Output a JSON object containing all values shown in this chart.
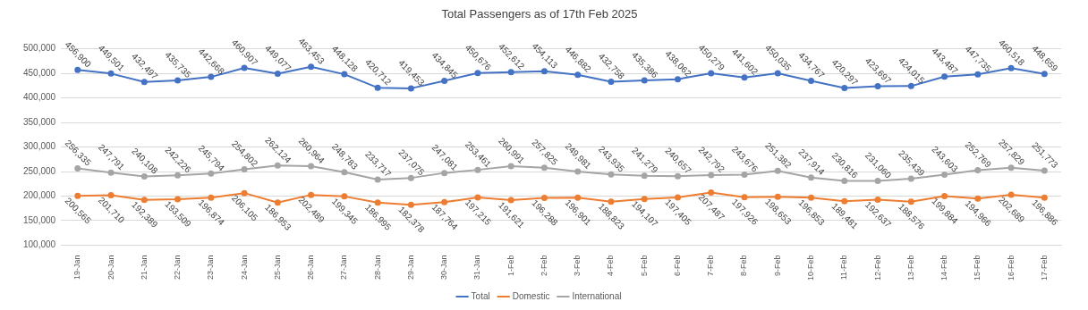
{
  "chart_data": {
    "type": "line",
    "title": "Total Passengers as of 17th Feb 2025",
    "categories": [
      "19-Jan",
      "20-Jan",
      "21-Jan",
      "22-Jan",
      "23-Jan",
      "24-Jan",
      "25-Jan",
      "26-Jan",
      "27-Jan",
      "28-Jan",
      "29-Jan",
      "30-Jan",
      "31-Jan",
      "1-Feb",
      "2-Feb",
      "3-Feb",
      "4-Feb",
      "5-Feb",
      "6-Feb",
      "7-Feb",
      "8-Feb",
      "9-Feb",
      "10-Feb",
      "11-Feb",
      "12-Feb",
      "13-Feb",
      "14-Feb",
      "15-Feb",
      "16-Feb",
      "17-Feb"
    ],
    "series": [
      {
        "name": "Total",
        "color": "#4472c4",
        "values": [
          456900,
          449501,
          432497,
          435735,
          442668,
          460907,
          449077,
          463453,
          448128,
          420712,
          419453,
          434845,
          450676,
          452612,
          454113,
          446882,
          432758,
          435386,
          438062,
          450279,
          441602,
          450035,
          434767,
          420297,
          423697,
          424015,
          443487,
          447735,
          460518,
          448659
        ],
        "value_labels": [
          "456,900",
          "449,501",
          "432,497",
          "435,735",
          "442,668",
          "460,907",
          "449,077",
          "463,453",
          "448,128",
          "420,712",
          "419,453",
          "434,845",
          "450,676",
          "452,612",
          "454,113",
          "446,882",
          "432,758",
          "435,386",
          "438,062",
          "450,279",
          "441,602",
          "450,035",
          "434,767",
          "420,297",
          "423,697",
          "424,015",
          "443,487",
          "447,735",
          "460,518",
          "448,659"
        ]
      },
      {
        "name": "Domestic",
        "color": "#ed7d31",
        "values": [
          200565,
          201710,
          192389,
          193509,
          196874,
          206105,
          186953,
          202489,
          199345,
          186995,
          182378,
          187764,
          197215,
          191621,
          196288,
          196901,
          188823,
          194107,
          197405,
          207487,
          197926,
          198653,
          196853,
          189481,
          192637,
          188576,
          199884,
          194966,
          202689,
          196886
        ],
        "value_labels": [
          "200,565",
          "201,710",
          "192,389",
          "193,509",
          "196,874",
          "206,105",
          "186,953",
          "202,489",
          "199,345",
          "186,995",
          "182,378",
          "187,764",
          "197,215",
          "191,621",
          "196,288",
          "196,901",
          "188,823",
          "194,107",
          "197,405",
          "207,487",
          "197,926",
          "198,653",
          "196,853",
          "189,481",
          "192,637",
          "188,576",
          "199,884",
          "194,966",
          "202,689",
          "196,886"
        ]
      },
      {
        "name": "International",
        "color": "#a5a5a5",
        "values": [
          256335,
          247791,
          240108,
          242226,
          245794,
          254802,
          262124,
          260964,
          248783,
          233717,
          237075,
          247081,
          253461,
          260991,
          257825,
          249981,
          243935,
          241279,
          240657,
          242792,
          243676,
          251382,
          237914,
          230816,
          231060,
          235439,
          243603,
          252769,
          257829,
          251773
        ],
        "value_labels": [
          "256,335",
          "247,791",
          "240,108",
          "242,226",
          "245,794",
          "254,802",
          "262,124",
          "260,964",
          "248,783",
          "233,717",
          "237,075",
          "247,081",
          "253,461",
          "260,991",
          "257,825",
          "249,981",
          "243,935",
          "241,279",
          "240,657",
          "242,792",
          "243,676",
          "251,382",
          "237,914",
          "230,816",
          "231,060",
          "235,439",
          "243,603",
          "252,769",
          "257,829",
          "251,773"
        ]
      }
    ],
    "ylim": [
      100000,
      500000
    ],
    "yticks": [
      {
        "value": 100000,
        "label": "100,000"
      },
      {
        "value": 150000,
        "label": "150,000"
      },
      {
        "value": 200000,
        "label": "200,000"
      },
      {
        "value": 250000,
        "label": "250,000"
      },
      {
        "value": 300000,
        "label": "300,000"
      },
      {
        "value": 350000,
        "label": "350,000"
      },
      {
        "value": 400000,
        "label": "400,000"
      },
      {
        "value": 450000,
        "label": "450,000"
      },
      {
        "value": 500000,
        "label": "500,000"
      }
    ],
    "grid": "y",
    "legend": "bottom",
    "marker": "circle",
    "line_style": "solid"
  }
}
